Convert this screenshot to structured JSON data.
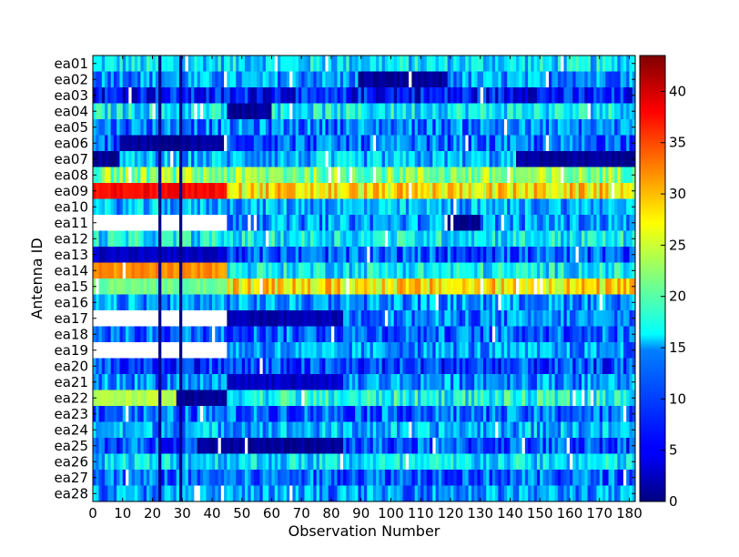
{
  "chart_data": {
    "type": "heatmap",
    "title": "",
    "xlabel": "Observation Number",
    "ylabel": "Antenna ID",
    "xlim": [
      0,
      182
    ],
    "x_ticks": [
      "0",
      "10",
      "20",
      "30",
      "40",
      "50",
      "60",
      "70",
      "80",
      "90",
      "100",
      "110",
      "120",
      "130",
      "140",
      "150",
      "160",
      "170",
      "180"
    ],
    "y_categories": [
      "ea01",
      "ea02",
      "ea03",
      "ea04",
      "ea05",
      "ea06",
      "ea07",
      "ea08",
      "ea09",
      "ea10",
      "ea11",
      "ea12",
      "ea13",
      "ea14",
      "ea15",
      "ea16",
      "ea17",
      "ea18",
      "ea19",
      "ea20",
      "ea21",
      "ea22",
      "ea23",
      "ea24",
      "ea25",
      "ea26",
      "ea27",
      "ea28"
    ],
    "colorbar": {
      "colormap": "jet",
      "range": [
        0,
        43.5
      ],
      "ticks": [
        "0",
        "5",
        "10",
        "15",
        "20",
        "25",
        "30",
        "35",
        "40"
      ]
    },
    "missing_color": "#ffffff",
    "row_levels": [
      {
        "antenna": "ea01",
        "typical_value": 15
      },
      {
        "antenna": "ea02",
        "typical_value": 12,
        "segments": [
          {
            "from": 89,
            "to": 119,
            "value": 1
          }
        ]
      },
      {
        "antenna": "ea03",
        "typical_value": 6
      },
      {
        "antenna": "ea04",
        "typical_value": 16,
        "segments": [
          {
            "from": 45,
            "to": 60,
            "value": 1
          }
        ]
      },
      {
        "antenna": "ea05",
        "typical_value": 11
      },
      {
        "antenna": "ea06",
        "typical_value": 10,
        "segments": [
          {
            "from": 9,
            "to": 45,
            "value": 1
          }
        ]
      },
      {
        "antenna": "ea07",
        "typical_value": 13,
        "segments": [
          {
            "from": 0,
            "to": 9,
            "value": 1
          },
          {
            "from": 142,
            "to": 182,
            "value": 1
          }
        ]
      },
      {
        "antenna": "ea08",
        "typical_value": 22
      },
      {
        "antenna": "ea09",
        "typical_value": 28,
        "segments": [
          {
            "from": 0,
            "to": 45,
            "value": 38
          }
        ]
      },
      {
        "antenna": "ea10",
        "typical_value": 13
      },
      {
        "antenna": "ea11",
        "typical_value": 12,
        "segments": [
          {
            "from": 0,
            "to": 45,
            "value": null
          },
          {
            "from": 118,
            "to": 130,
            "value": 1
          }
        ]
      },
      {
        "antenna": "ea12",
        "typical_value": 16
      },
      {
        "antenna": "ea13",
        "typical_value": 9,
        "segments": [
          {
            "from": 0,
            "to": 45,
            "value": 3
          }
        ]
      },
      {
        "antenna": "ea14",
        "typical_value": 16,
        "segments": [
          {
            "from": 0,
            "to": 45,
            "value": 32
          }
        ]
      },
      {
        "antenna": "ea15",
        "typical_value": 28,
        "segments": [
          {
            "from": 0,
            "to": 45,
            "value": 21
          }
        ]
      },
      {
        "antenna": "ea16",
        "typical_value": 12
      },
      {
        "antenna": "ea17",
        "typical_value": 11,
        "segments": [
          {
            "from": 0,
            "to": 45,
            "value": null
          },
          {
            "from": 45,
            "to": 84,
            "value": 2
          }
        ]
      },
      {
        "antenna": "ea18",
        "typical_value": 10
      },
      {
        "antenna": "ea19",
        "typical_value": 12,
        "segments": [
          {
            "from": 0,
            "to": 45,
            "value": null
          }
        ]
      },
      {
        "antenna": "ea20",
        "typical_value": 8
      },
      {
        "antenna": "ea21",
        "typical_value": 12,
        "segments": [
          {
            "from": 45,
            "to": 84,
            "value": 3
          }
        ]
      },
      {
        "antenna": "ea22",
        "typical_value": 17,
        "segments": [
          {
            "from": 0,
            "to": 28,
            "value": 24
          },
          {
            "from": 28,
            "to": 45,
            "value": 1
          }
        ]
      },
      {
        "antenna": "ea23",
        "typical_value": 10
      },
      {
        "antenna": "ea24",
        "typical_value": 13
      },
      {
        "antenna": "ea25",
        "typical_value": 9,
        "segments": [
          {
            "from": 35,
            "to": 84,
            "value": 1
          }
        ]
      },
      {
        "antenna": "ea26",
        "typical_value": 15
      },
      {
        "antenna": "ea27",
        "typical_value": 10
      },
      {
        "antenna": "ea28",
        "typical_value": 12
      }
    ],
    "flagged_observations": [
      22,
      29
    ]
  }
}
